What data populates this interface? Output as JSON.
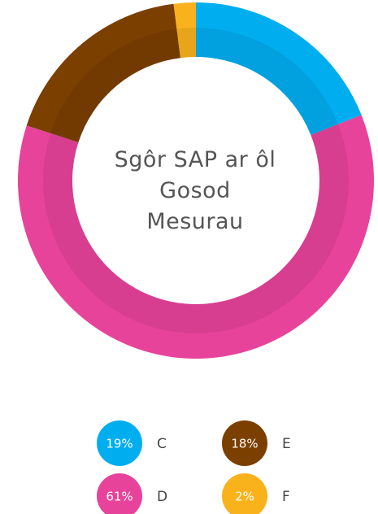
{
  "chart_data": {
    "type": "donut",
    "title": "Sgôr SAP ar ôl Gosod Mesurau",
    "categories": [
      "C",
      "D",
      "E",
      "F"
    ],
    "values": [
      19,
      61,
      18,
      2
    ],
    "value_labels": [
      "19%",
      "61%",
      "18%",
      "2%"
    ],
    "colors": [
      "#00aeef",
      "#e8439a",
      "#7b3f00",
      "#f9b21b"
    ]
  }
}
